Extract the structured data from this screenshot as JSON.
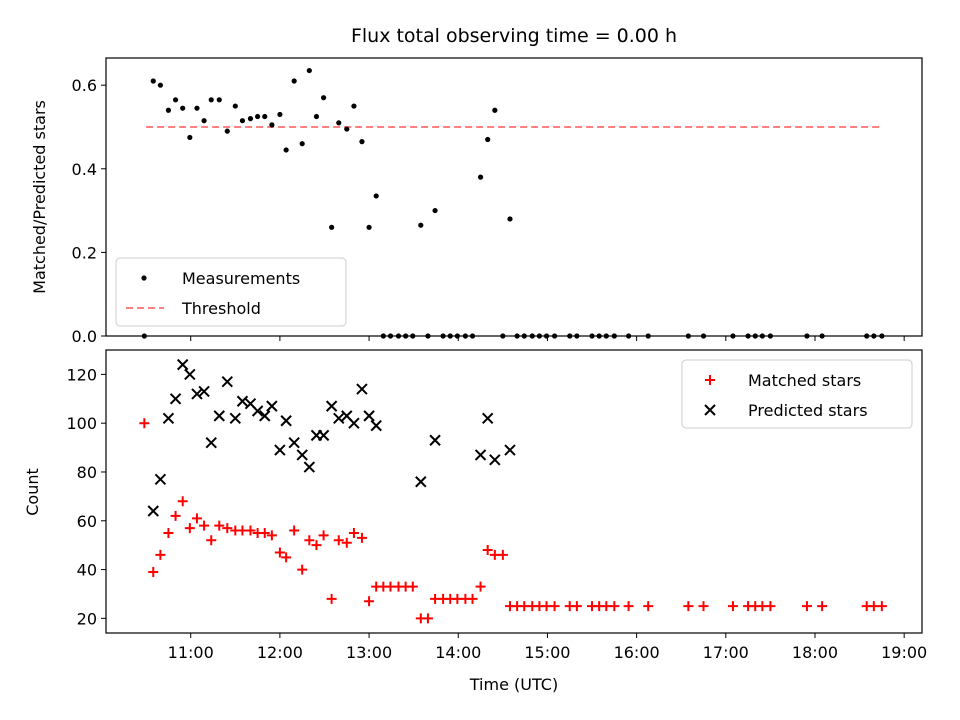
{
  "chart_data": [
    {
      "type": "scatter",
      "title": "Flux total observing time = 0.00 h",
      "xlabel": "",
      "ylabel": "Matched/Predicted stars",
      "ylim": [
        0,
        0.665
      ],
      "xlim_hours": [
        10.05,
        19.2
      ],
      "yticks": [
        "0.0",
        "0.2",
        "0.4",
        "0.6"
      ],
      "ytick_values": [
        0,
        0.2,
        0.4,
        0.6
      ],
      "legend_position": "lower-left",
      "legend": [
        "Measurements",
        "Threshold"
      ],
      "threshold": {
        "name": "Threshold",
        "value": 0.5,
        "x_start": 10.5,
        "x_end": 18.75,
        "color": "#ff8080"
      },
      "series": [
        {
          "name": "Measurements",
          "marker": "dot",
          "color": "#000000",
          "x": [
            10.48,
            10.58,
            10.66,
            10.75,
            10.83,
            10.91,
            10.99,
            11.07,
            11.15,
            11.23,
            11.32,
            11.41,
            11.5,
            11.58,
            11.67,
            11.75,
            11.83,
            11.91,
            12.0,
            12.07,
            12.16,
            12.25,
            12.33,
            12.41,
            12.49,
            12.58,
            12.66,
            12.75,
            12.83,
            12.92,
            13.0,
            13.08,
            13.16,
            13.24,
            13.33,
            13.41,
            13.49,
            13.58,
            13.66,
            13.74,
            13.83,
            13.91,
            13.99,
            14.08,
            14.16,
            14.25,
            14.33,
            14.41,
            14.5,
            14.58,
            14.66,
            14.74,
            14.83,
            14.91,
            14.99,
            15.08,
            15.25,
            15.33,
            15.5,
            15.58,
            15.66,
            15.75,
            15.91,
            16.13,
            16.58,
            16.75,
            17.08,
            17.25,
            17.33,
            17.41,
            17.5,
            17.91,
            18.08,
            18.58,
            18.66,
            18.75
          ],
          "y": [
            0,
            0.61,
            0.6,
            0.54,
            0.565,
            0.545,
            0.475,
            0.545,
            0.515,
            0.565,
            0.565,
            0.49,
            0.55,
            0.515,
            0.52,
            0.525,
            0.525,
            0.505,
            0.53,
            0.445,
            0.61,
            0.46,
            0.635,
            0.525,
            0.57,
            0.26,
            0.51,
            0.495,
            0.55,
            0.465,
            0.26,
            0.335,
            0,
            0,
            0,
            0,
            0,
            0.265,
            0,
            0.3,
            0,
            0,
            0,
            0,
            0,
            0.38,
            0.47,
            0.54,
            0,
            0.28,
            0,
            0,
            0,
            0,
            0,
            0,
            0,
            0,
            0,
            0,
            0,
            0,
            0,
            0,
            0,
            0,
            0,
            0,
            0,
            0,
            0,
            0,
            0,
            0,
            0,
            0
          ]
        }
      ]
    },
    {
      "type": "scatter",
      "title": "",
      "xlabel": "Time (UTC)",
      "ylabel": "Count",
      "ylim": [
        14,
        130
      ],
      "xlim_hours": [
        10.05,
        19.2
      ],
      "yticks": [
        "20",
        "40",
        "60",
        "80",
        "100",
        "120"
      ],
      "ytick_values": [
        20,
        40,
        60,
        80,
        100,
        120
      ],
      "xticks": [
        "11:00",
        "12:00",
        "13:00",
        "14:00",
        "15:00",
        "16:00",
        "17:00",
        "18:00",
        "19:00"
      ],
      "xtick_values": [
        11,
        12,
        13,
        14,
        15,
        16,
        17,
        18,
        19
      ],
      "legend_position": "upper-right",
      "legend": [
        "Matched stars",
        "Predicted stars"
      ],
      "series": [
        {
          "name": "Matched stars",
          "marker": "plus",
          "color": "#ff0000",
          "x": [
            10.48,
            10.58,
            10.66,
            10.75,
            10.83,
            10.91,
            10.99,
            11.07,
            11.15,
            11.23,
            11.32,
            11.41,
            11.5,
            11.58,
            11.67,
            11.75,
            11.83,
            11.91,
            12.0,
            12.07,
            12.16,
            12.25,
            12.33,
            12.41,
            12.49,
            12.58,
            12.66,
            12.75,
            12.83,
            12.92,
            13.0,
            13.08,
            13.16,
            13.24,
            13.33,
            13.41,
            13.49,
            13.58,
            13.66,
            13.74,
            13.83,
            13.91,
            13.99,
            14.08,
            14.16,
            14.25,
            14.33,
            14.41,
            14.5,
            14.58,
            14.66,
            14.74,
            14.83,
            14.91,
            14.99,
            15.08,
            15.25,
            15.33,
            15.5,
            15.58,
            15.66,
            15.75,
            15.91,
            16.13,
            16.58,
            16.75,
            17.08,
            17.25,
            17.33,
            17.41,
            17.5,
            17.91,
            18.08,
            18.58,
            18.66,
            18.75
          ],
          "y": [
            100,
            39,
            46,
            55,
            62,
            68,
            57,
            61,
            58,
            52,
            58,
            57,
            56,
            56,
            56,
            55,
            55,
            54,
            47,
            45,
            56,
            40,
            52,
            50,
            54,
            28,
            52,
            51,
            55,
            53,
            27,
            33,
            33,
            33,
            33,
            33,
            33,
            20,
            20,
            28,
            28,
            28,
            28,
            28,
            28,
            33,
            48,
            46,
            46,
            25,
            25,
            25,
            25,
            25,
            25,
            25,
            25,
            25,
            25,
            25,
            25,
            25,
            25,
            25,
            25,
            25,
            25,
            25,
            25,
            25,
            25,
            25,
            25,
            25,
            25,
            25
          ]
        },
        {
          "name": "Predicted stars",
          "marker": "x",
          "color": "#000000",
          "x": [
            10.58,
            10.66,
            10.75,
            10.83,
            10.91,
            10.99,
            11.07,
            11.15,
            11.23,
            11.32,
            11.41,
            11.5,
            11.58,
            11.67,
            11.75,
            11.83,
            11.91,
            12.0,
            12.07,
            12.16,
            12.25,
            12.33,
            12.41,
            12.49,
            12.58,
            12.66,
            12.75,
            12.83,
            12.92,
            13.0,
            13.08,
            13.58,
            13.74,
            14.25,
            14.33,
            14.41,
            14.58
          ],
          "y": [
            64,
            77,
            102,
            110,
            124,
            120,
            112,
            113,
            92,
            103,
            117,
            102,
            109,
            108,
            105,
            103,
            107,
            89,
            101,
            92,
            87,
            82,
            95,
            95,
            107,
            102,
            103,
            100,
            114,
            103,
            99,
            76,
            93,
            87,
            102,
            85,
            89
          ]
        }
      ]
    }
  ]
}
